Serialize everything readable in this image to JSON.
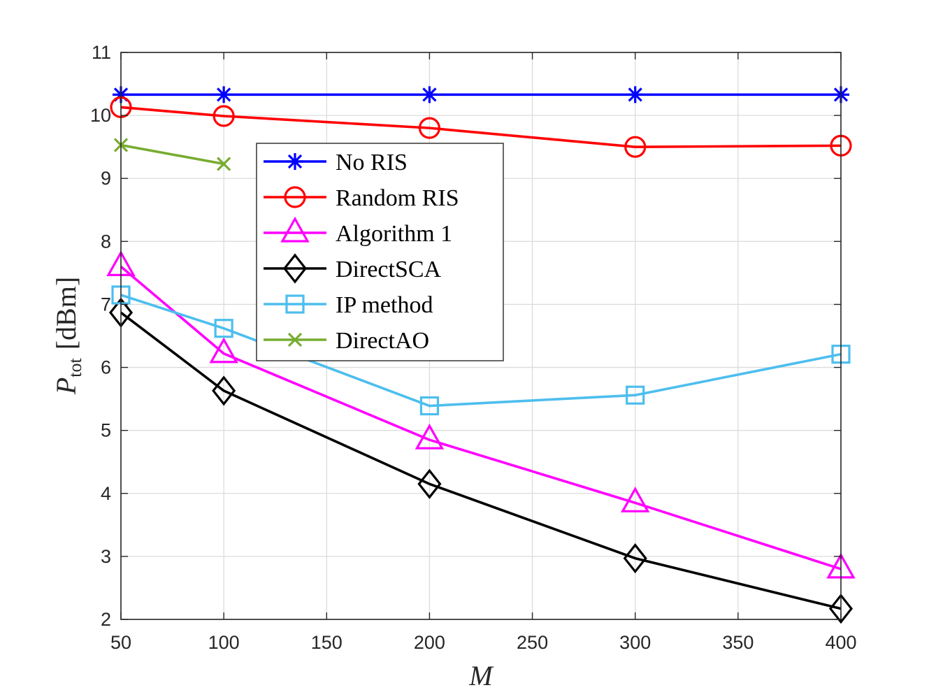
{
  "chart_data": {
    "type": "line",
    "title": "",
    "xlabel": "M",
    "ylabel": {
      "symbol": "P",
      "subscript": "tot",
      "unit": "[dBm]"
    },
    "xlim": [
      50,
      400
    ],
    "ylim": [
      2,
      11
    ],
    "x_ticks": [
      50,
      100,
      150,
      200,
      250,
      300,
      350,
      400
    ],
    "y_ticks": [
      2,
      3,
      4,
      5,
      6,
      7,
      8,
      9,
      10,
      11
    ],
    "grid": true,
    "legend_position": "upper-middle",
    "series": [
      {
        "name": "No RIS",
        "color": "#0000ff",
        "marker": "asterisk",
        "x": [
          50,
          100,
          200,
          300,
          400
        ],
        "values": [
          10.33,
          10.33,
          10.33,
          10.33,
          10.33
        ]
      },
      {
        "name": "Random RIS",
        "color": "#ff0000",
        "marker": "circle",
        "x": [
          50,
          100,
          200,
          300,
          400
        ],
        "values": [
          10.13,
          9.99,
          9.8,
          9.5,
          9.52
        ]
      },
      {
        "name": "Algorithm 1",
        "color": "#ff00ff",
        "marker": "triangle",
        "x": [
          50,
          100,
          200,
          300,
          400
        ],
        "values": [
          7.6,
          6.22,
          4.85,
          3.85,
          2.8
        ]
      },
      {
        "name": "DirectSCA",
        "color": "#000000",
        "marker": "diamond",
        "x": [
          50,
          100,
          200,
          300,
          400
        ],
        "values": [
          6.87,
          5.63,
          4.15,
          2.97,
          2.17
        ]
      },
      {
        "name": "IP method",
        "color": "#4dbeee",
        "marker": "square",
        "x": [
          50,
          100,
          200,
          300,
          400
        ],
        "values": [
          7.15,
          6.62,
          5.39,
          5.56,
          6.21
        ]
      },
      {
        "name": "DirectAO",
        "color": "#77ac30",
        "marker": "cross",
        "x": [
          50,
          100
        ],
        "values": [
          9.53,
          9.23
        ]
      }
    ]
  }
}
